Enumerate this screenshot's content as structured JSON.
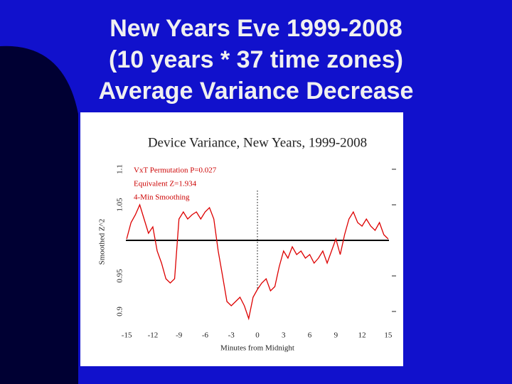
{
  "slide_title": [
    "New Years Eve 1999-2008",
    "(10 years * 37 time zones)",
    "Average Variance Decrease"
  ],
  "chart_data": {
    "type": "line",
    "title": "Device Variance, New Years, 1999-2008",
    "annotations": [
      "VxT Permutation P=0.027",
      "Equivalent Z=1.934",
      "4-Min Smoothing"
    ],
    "xlabel": "Minutes from Midnight",
    "ylabel": "Smoothed Z^2",
    "xlim": [
      -15.5,
      15.5
    ],
    "ylim": [
      0.87,
      1.125
    ],
    "xticks": [
      -15,
      -12,
      -9,
      -6,
      -3,
      0,
      3,
      6,
      9,
      12,
      15
    ],
    "yticks": [
      0.9,
      0.95,
      1.05,
      1.1
    ],
    "reference_y": 1,
    "reference_x": 0,
    "x": [
      -15,
      -14.5,
      -14,
      -13.5,
      -13,
      -12.5,
      -12,
      -11.5,
      -11,
      -10.5,
      -10,
      -9.5,
      -9,
      -8.5,
      -8,
      -7.5,
      -7,
      -6.5,
      -6,
      -5.5,
      -5,
      -4.5,
      -4,
      -3.5,
      -3,
      -2.5,
      -2,
      -1.5,
      -1,
      -0.5,
      0,
      0.5,
      1,
      1.5,
      2,
      2.5,
      3,
      3.5,
      4,
      4.5,
      5,
      5.5,
      6,
      6.5,
      7,
      7.5,
      8,
      8.5,
      9,
      9.5,
      10,
      10.5,
      11,
      11.5,
      12,
      12.5,
      13,
      13.5,
      14,
      14.5,
      15
    ],
    "series": [
      {
        "color": "#dd0000",
        "values": [
          1.002,
          1.025,
          1.036,
          1.05,
          1.03,
          1.01,
          1.019,
          0.985,
          0.968,
          0.946,
          0.94,
          0.946,
          1.03,
          1.04,
          1.03,
          1.036,
          1.04,
          1.03,
          1.04,
          1.046,
          1.03,
          0.985,
          0.95,
          0.914,
          0.908,
          0.914,
          0.92,
          0.908,
          0.89,
          0.92,
          0.931,
          0.94,
          0.946,
          0.929,
          0.935,
          0.963,
          0.985,
          0.975,
          0.991,
          0.98,
          0.985,
          0.975,
          0.98,
          0.968,
          0.975,
          0.985,
          0.968,
          0.985,
          1.002,
          0.98,
          1.008,
          1.03,
          1.04,
          1.025,
          1.02,
          1.03,
          1.02,
          1.014,
          1.025,
          1.008,
          1.002
        ]
      }
    ]
  }
}
